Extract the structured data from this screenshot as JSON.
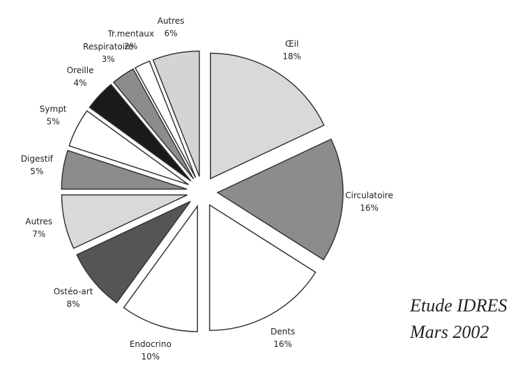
{
  "chart_data": {
    "type": "pie",
    "categories": [
      "Œil",
      "Circulatoire",
      "Dents",
      "Endocrino",
      "Ostéo-art",
      "Autres",
      "Digestif",
      "Sympt",
      "Oreille",
      "Respiratoire",
      "Tr.mentaux",
      "Autres"
    ],
    "values": [
      18,
      16,
      16,
      10,
      8,
      7,
      5,
      5,
      4,
      3,
      2,
      6
    ],
    "value_labels": [
      "18%",
      "16%",
      "16%",
      "10%",
      "8%",
      "7%",
      "5%",
      "5%",
      "4%",
      "3%",
      "2%",
      "6%"
    ],
    "colors": [
      "#d9d9d9",
      "#8c8c8c",
      "#ffffff",
      "#ffffff",
      "#555555",
      "#d9d9d9",
      "#8c8c8c",
      "#ffffff",
      "#1a1a1a",
      "#8c8c8c",
      "#ffffff",
      "#d4d4d4"
    ],
    "annotation": [
      "Etude IDRES",
      "Mars 2002"
    ]
  }
}
